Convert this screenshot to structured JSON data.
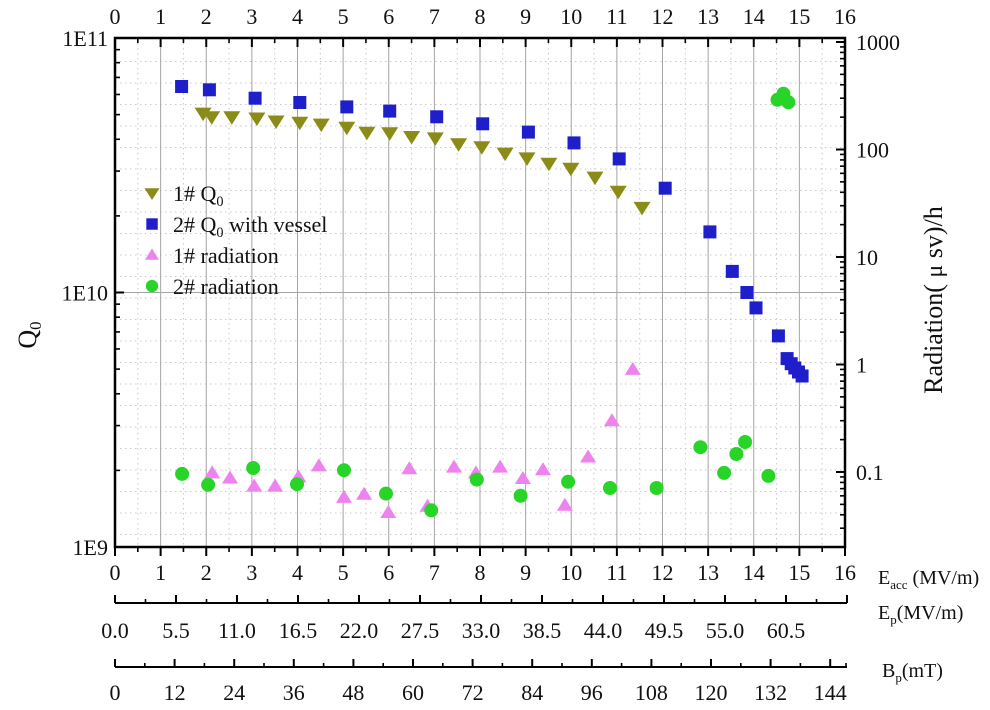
{
  "figure": {
    "background": "#ffffff",
    "frame_color": "#000000",
    "grid_solid_color": "#a4a4a4",
    "grid_dotted_color": "#c9c9c9"
  },
  "chart_data": {
    "type": "scatter",
    "title": "",
    "x_axis": {
      "label": "E_{acc} (MV/m)",
      "min": 0,
      "max": 16,
      "major_step": 1,
      "minor_step": 0.5,
      "tick_labels": [
        "0",
        "1",
        "2",
        "3",
        "4",
        "5",
        "6",
        "7",
        "8",
        "9",
        "10",
        "11",
        "12",
        "13",
        "14",
        "15",
        "16"
      ]
    },
    "y_left_axis": {
      "label": "Q_{0}",
      "scale": "log",
      "min": 1000000000.0,
      "max": 100000000000.0,
      "ticks": [
        {
          "v": 1000000000.0,
          "label": "1E9"
        },
        {
          "v": 10000000000.0,
          "label": "1E10"
        },
        {
          "v": 100000000000.0,
          "label": "1E11"
        }
      ]
    },
    "y_right_axis": {
      "label": "Radiation( μ sv)/h",
      "scale": "log",
      "ticks": [
        {
          "v": 0.1,
          "label": "0.1"
        },
        {
          "v": 1,
          "label": "1"
        },
        {
          "v": 10,
          "label": "10"
        },
        {
          "v": 100,
          "label": "100"
        },
        {
          "v": 1000,
          "label": "1000"
        }
      ]
    },
    "x2_axis": {
      "label": "E_{p}(MV/m)",
      "tick_labels": [
        "0.0",
        "5.5",
        "11.0",
        "16.5",
        "22.0",
        "27.5",
        "33.0",
        "38.5",
        "44.0",
        "49.5",
        "55.0",
        "60.5"
      ]
    },
    "x3_axis": {
      "label": "B_{p}(mT)",
      "tick_labels": [
        "0",
        "12",
        "24",
        "36",
        "48",
        "60",
        "72",
        "84",
        "96",
        "108",
        "120",
        "132",
        "144"
      ]
    },
    "legend_position": "inside-upper-left",
    "series": [
      {
        "id": "series-1-q0",
        "name": "1# Q_{0}",
        "marker": "triangle-down",
        "color": "#8b8b17",
        "y_axis": "left",
        "points": [
          [
            1.93,
            50700000000.0
          ],
          [
            2.12,
            49000000000.0
          ],
          [
            2.56,
            49000000000.0
          ],
          [
            3.11,
            48500000000.0
          ],
          [
            3.53,
            47200000000.0
          ],
          [
            4.05,
            46700000000.0
          ],
          [
            4.52,
            45900000000.0
          ],
          [
            5.08,
            44600000000.0
          ],
          [
            5.52,
            42600000000.0
          ],
          [
            6.02,
            42400000000.0
          ],
          [
            6.5,
            41000000000.0
          ],
          [
            7.02,
            40500000000.0
          ],
          [
            7.53,
            38400000000.0
          ],
          [
            8.04,
            37400000000.0
          ],
          [
            8.55,
            35300000000.0
          ],
          [
            9.03,
            33800000000.0
          ],
          [
            9.51,
            32200000000.0
          ],
          [
            9.99,
            30800000000.0
          ],
          [
            10.52,
            28400000000.0
          ],
          [
            11.03,
            25000000000.0
          ],
          [
            11.55,
            21600000000.0
          ]
        ]
      },
      {
        "id": "series-2-q0-with-vessel",
        "name": "2# Q_{0} with vessel",
        "marker": "square",
        "color": "#1e1ecb",
        "y_axis": "left",
        "points": [
          [
            1.46,
            64500000000.0
          ],
          [
            2.07,
            62600000000.0
          ],
          [
            3.07,
            58000000000.0
          ],
          [
            4.05,
            55800000000.0
          ],
          [
            5.08,
            53600000000.0
          ],
          [
            6.02,
            51600000000.0
          ],
          [
            7.05,
            49000000000.0
          ],
          [
            8.06,
            46000000000.0
          ],
          [
            9.06,
            42700000000.0
          ],
          [
            10.06,
            38700000000.0
          ],
          [
            11.05,
            33500000000.0
          ],
          [
            12.06,
            25700000000.0
          ],
          [
            13.04,
            17300000000.0
          ],
          [
            13.53,
            12100000000.0
          ],
          [
            13.85,
            10000000000.0
          ],
          [
            14.05,
            8700000000.0
          ],
          [
            14.54,
            6750000000.0
          ],
          [
            14.73,
            5500000000.0
          ],
          [
            14.82,
            5250000000.0
          ],
          [
            14.9,
            5050000000.0
          ],
          [
            14.98,
            4870000000.0
          ],
          [
            15.06,
            4700000000.0
          ]
        ]
      },
      {
        "id": "series-1-radiation",
        "name": "1# radiation",
        "marker": "triangle-up",
        "color": "#ee82ee",
        "y_axis": "right",
        "points": [
          [
            2.13,
            0.098
          ],
          [
            2.52,
            0.088
          ],
          [
            3.05,
            0.074
          ],
          [
            3.51,
            0.074
          ],
          [
            4.02,
            0.09
          ],
          [
            4.47,
            0.114
          ],
          [
            5.02,
            0.058
          ],
          [
            5.46,
            0.062
          ],
          [
            5.99,
            0.042
          ],
          [
            6.45,
            0.107
          ],
          [
            6.85,
            0.048
          ],
          [
            7.43,
            0.111
          ],
          [
            7.91,
            0.098
          ],
          [
            8.44,
            0.111
          ],
          [
            8.94,
            0.087
          ],
          [
            9.38,
            0.105
          ],
          [
            9.86,
            0.049
          ],
          [
            10.37,
            0.138
          ],
          [
            10.89,
            0.3
          ],
          [
            11.35,
            0.9
          ]
        ]
      },
      {
        "id": "series-2-radiation",
        "name": "2# radiation",
        "marker": "circle",
        "color": "#29d429",
        "y_axis": "right",
        "points": [
          [
            1.47,
            0.096
          ],
          [
            2.04,
            0.076
          ],
          [
            3.03,
            0.109
          ],
          [
            3.99,
            0.077
          ],
          [
            5.02,
            0.104
          ],
          [
            5.94,
            0.063
          ],
          [
            6.93,
            0.044
          ],
          [
            7.93,
            0.085
          ],
          [
            8.89,
            0.06
          ],
          [
            9.93,
            0.081
          ],
          [
            10.85,
            0.071
          ],
          [
            11.87,
            0.071
          ],
          [
            12.83,
            0.17
          ],
          [
            13.35,
            0.098
          ],
          [
            13.62,
            0.147
          ],
          [
            13.81,
            0.19
          ],
          [
            14.32,
            0.092
          ],
          [
            14.52,
            290
          ],
          [
            14.65,
            330
          ],
          [
            14.76,
            275
          ]
        ]
      }
    ]
  }
}
